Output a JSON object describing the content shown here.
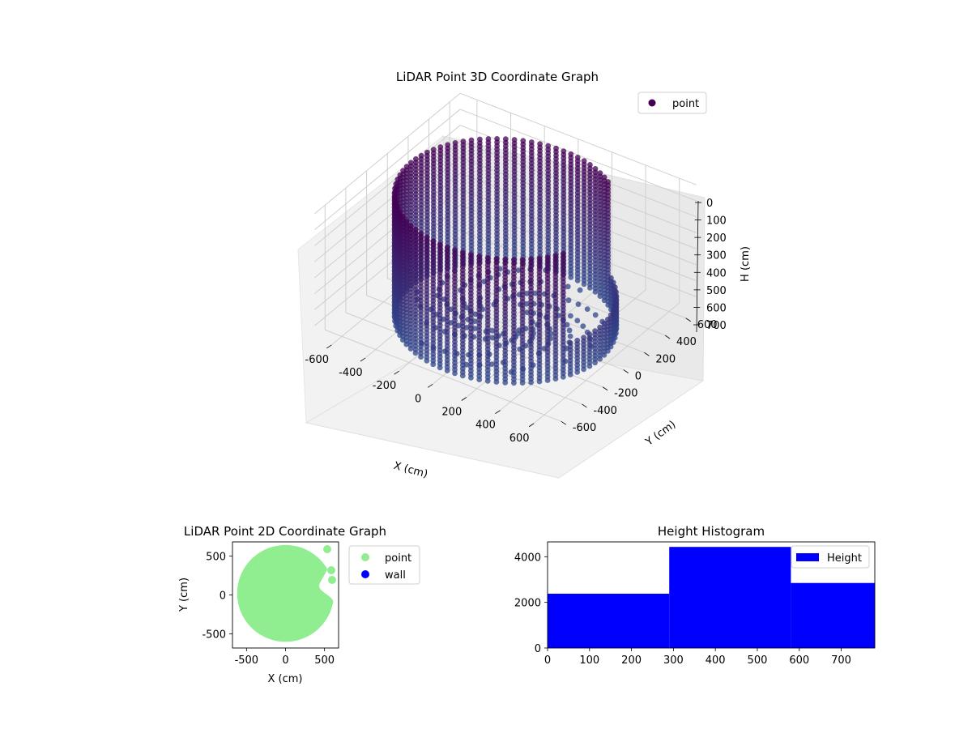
{
  "chart_data": [
    {
      "type": "scatter",
      "projection": "3d",
      "title": "LiDAR Point 3D Coordinate Graph",
      "xlabel": "X (cm)",
      "ylabel": "Y (cm)",
      "zlabel": "H (cm)",
      "xlim": [
        -700,
        700
      ],
      "ylim": [
        -700,
        700
      ],
      "zlim": [
        0,
        780
      ],
      "z_inverted": true,
      "xticks": [
        "-600",
        "-400",
        "-200",
        "0",
        "200",
        "400",
        "600"
      ],
      "yticks": [
        "-600",
        "-400",
        "-200",
        "0",
        "200",
        "400",
        "600"
      ],
      "zticks": [
        "0",
        "100",
        "200",
        "300",
        "400",
        "500",
        "600",
        "700"
      ],
      "legend": {
        "position": "top-right",
        "entries": [
          {
            "label": "point",
            "color": "#440154"
          }
        ]
      },
      "series": [
        {
          "name": "point",
          "colormap": "viridis-depth",
          "shape": "cylindrical wall",
          "radius": 560,
          "height_range": [
            0,
            780
          ],
          "open_angle_range_deg": [
            -25,
            50
          ]
        }
      ]
    },
    {
      "type": "scatter",
      "title": "LiDAR Point 2D Coordinate Graph",
      "xlabel": "X (cm)",
      "ylabel": "Y (cm)",
      "xlim": [
        -680,
        680
      ],
      "ylim": [
        -680,
        680
      ],
      "xticks": [
        "-500",
        "0",
        "500"
      ],
      "yticks": [
        "-500",
        "0",
        "500"
      ],
      "legend": {
        "position": "outside-right",
        "entries": [
          {
            "label": "point",
            "color": "#90ee90"
          },
          {
            "label": "wall",
            "color": "#0000ff"
          }
        ]
      },
      "series": [
        {
          "name": "point",
          "color": "#90ee90",
          "shape": "filled disc",
          "radius": 620
        },
        {
          "name": "wall",
          "color": "#0000ff",
          "values": []
        }
      ]
    },
    {
      "type": "bar",
      "title": "Height Histogram",
      "xlim": [
        0,
        780
      ],
      "ylim": [
        0,
        4650
      ],
      "xticks": [
        "0",
        "100",
        "200",
        "300",
        "400",
        "500",
        "600",
        "700"
      ],
      "yticks": [
        "0",
        "2000",
        "4000"
      ],
      "bins": [
        {
          "x0": 0,
          "x1": 290,
          "value": 2380
        },
        {
          "x0": 290,
          "x1": 580,
          "value": 4430
        },
        {
          "x0": 580,
          "x1": 780,
          "value": 2850
        }
      ],
      "legend": {
        "position": "top-right",
        "entries": [
          {
            "label": "Height",
            "color": "#0000ff"
          }
        ]
      }
    }
  ]
}
